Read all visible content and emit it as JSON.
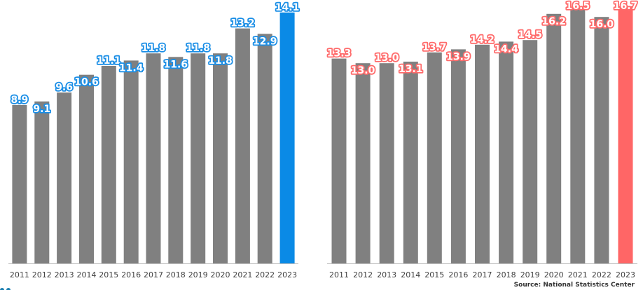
{
  "chart_data": [
    {
      "type": "bar",
      "categories": [
        "2011",
        "2012",
        "2013",
        "2014",
        "2015",
        "2016",
        "2017",
        "2018",
        "2019",
        "2020",
        "2021",
        "2022",
        "2023"
      ],
      "values": [
        8.9,
        9.1,
        9.6,
        10.6,
        11.1,
        11.4,
        11.8,
        11.6,
        11.8,
        11.8,
        13.2,
        12.9,
        14.1
      ],
      "bar_color": "#808080",
      "highlight_color": "#0a8ae6",
      "highlight_index": 12,
      "label_color": "#1a8ee6",
      "ylim": [
        0,
        14.8
      ],
      "grid": false,
      "title": "",
      "xlabel": "",
      "ylabel": ""
    },
    {
      "type": "bar",
      "categories": [
        "2011",
        "2012",
        "2013",
        "2014",
        "2015",
        "2016",
        "2017",
        "2018",
        "2019",
        "2020",
        "2021",
        "2022",
        "2023"
      ],
      "values": [
        13.3,
        13.0,
        13.0,
        13.1,
        13.7,
        13.9,
        14.2,
        14.4,
        14.5,
        16.2,
        16.5,
        16.0,
        16.7
      ],
      "bar_color": "#808080",
      "highlight_color": "#ff6666",
      "highlight_index": 12,
      "label_color": "#ff6b6b",
      "ylim": [
        0,
        17.1
      ],
      "grid": false,
      "title": "",
      "xlabel": "",
      "ylabel": ""
    }
  ],
  "source_text": "Source: National Statistics Center",
  "corner_mark_color": "#1a7fb0"
}
